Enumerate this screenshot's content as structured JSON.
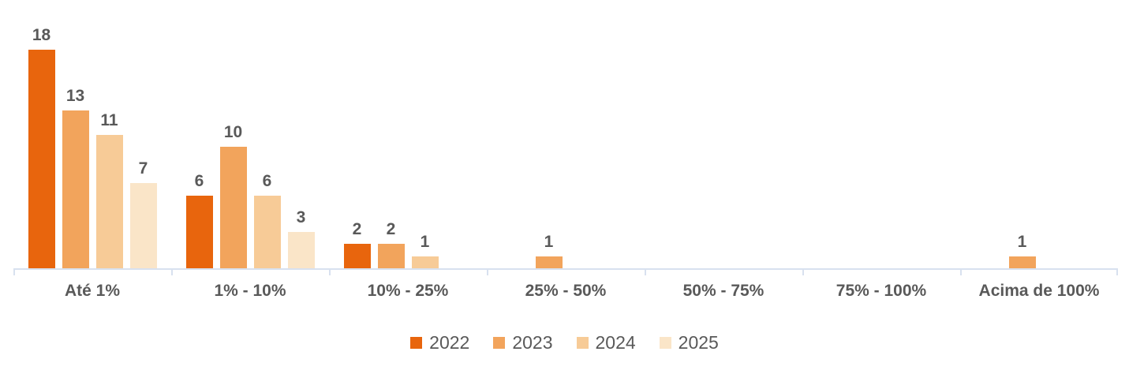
{
  "chart_data": {
    "type": "bar",
    "title": "",
    "xlabel": "",
    "ylabel": "",
    "categories": [
      "Até 1%",
      "1% - 10%",
      "10% - 25%",
      "25% - 50%",
      "50% - 75%",
      "75% - 100%",
      "Acima de 100%"
    ],
    "series": [
      {
        "name": "2022",
        "color": "#e8650d",
        "values": [
          18,
          6,
          2,
          null,
          null,
          null,
          null
        ]
      },
      {
        "name": "2023",
        "color": "#f2a45c",
        "values": [
          13,
          10,
          2,
          1,
          null,
          null,
          1
        ]
      },
      {
        "name": "2024",
        "color": "#f7cb97",
        "values": [
          11,
          6,
          1,
          null,
          null,
          null,
          null
        ]
      },
      {
        "name": "2025",
        "color": "#fae5c8",
        "values": [
          7,
          3,
          null,
          null,
          null,
          null,
          null
        ]
      }
    ],
    "ylim": [
      0,
      18
    ],
    "grid": false,
    "data_labels": true,
    "legend_position": "bottom",
    "label_color": "#595959",
    "axis_line_color": "#d8e1ef"
  }
}
